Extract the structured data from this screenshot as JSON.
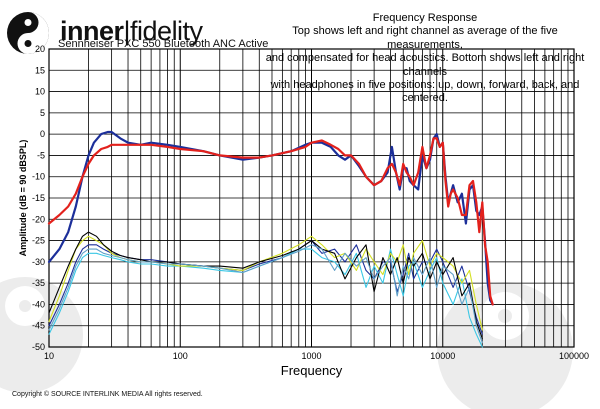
{
  "logo": {
    "brand": "inner|fidelity",
    "brand_bold": "inner",
    "brand_sep": "|",
    "brand_light": "fidelity"
  },
  "subtitle": "Sennheiser PXC 550 Bluetooth ANC Active",
  "copyright": "Copyright © SOURCE INTERLINK MEDIA All rights reserved.",
  "colors": {
    "red": "#e3211c",
    "blue": "#1c2f9a",
    "grid": "#000000",
    "watermark": "#ececec"
  },
  "chart_data": {
    "type": "line",
    "title": "Frequency Response",
    "subtitle": "Top shows left and right channel as average of the five measurements, and compensated for head acoustics. Bottom shows left and right channels with headphones in five positions: up, down, forward, back, and centered.",
    "subtitle_lines": [
      "Top shows left and right channel as average of the five measurements,",
      "and compensated for head acoustics. Bottom shows left and right channels",
      "with headphones in five positions: up, down, forward, back, and centered."
    ],
    "xlabel": "Frequency",
    "ylabel": "Amplitude (dB = 90 dBSPL)",
    "x_scale": "log",
    "xlim": [
      10,
      100000
    ],
    "ylim": [
      -50,
      20
    ],
    "x_ticks": [
      10,
      100,
      1000,
      10000,
      100000
    ],
    "x_tick_labels": [
      "10",
      "100",
      "1000",
      "10000",
      "100000"
    ],
    "y_ticks": [
      20,
      15,
      10,
      5,
      0,
      -5,
      -10,
      -15,
      -20,
      -25,
      -30,
      -35,
      -40,
      -45,
      -50
    ],
    "y_tick_labels": [
      "20",
      "15",
      "10",
      "5",
      "0",
      "-5",
      "-10",
      "-15",
      "-20",
      "-25",
      "-30",
      "-35",
      "-40",
      "-45",
      "-50"
    ],
    "grid": true,
    "series": [
      {
        "color": "#1c2f9a",
        "width": 2.2,
        "x": [
          10,
          12,
          14,
          16,
          18,
          20,
          22,
          25,
          28,
          30,
          35,
          40,
          50,
          60,
          80,
          100,
          150,
          200,
          300,
          400,
          500,
          700,
          900,
          1000,
          1200,
          1400,
          1600,
          1800,
          2000,
          2300,
          2600,
          3000,
          3400,
          3800,
          4100,
          4400,
          4700,
          5000,
          5300,
          5600,
          6000,
          6500,
          7000,
          7500,
          8000,
          8500,
          9000,
          9500,
          10000,
          10500,
          11000,
          11500,
          12000,
          13000,
          14000,
          15000,
          16000,
          17000,
          18000,
          19000,
          20000,
          21000,
          22000,
          23000,
          24000
        ],
        "y": [
          -30,
          -27,
          -23,
          -17,
          -10,
          -5,
          -2,
          0,
          0.5,
          0.5,
          -1,
          -2,
          -2.5,
          -2,
          -2.5,
          -3,
          -4,
          -5,
          -6,
          -5.5,
          -5,
          -4,
          -2.5,
          -2,
          -2,
          -3,
          -5,
          -6,
          -5,
          -7.5,
          -10,
          -12,
          -11,
          -9,
          -3,
          -9,
          -13,
          -8,
          -8,
          -11,
          -12,
          -13,
          -5,
          -8,
          -6,
          -1,
          0,
          -3,
          -2,
          -10,
          -16,
          -14,
          -12,
          -16,
          -14,
          -21,
          -13,
          -12,
          -18,
          -19,
          -17,
          -25,
          -35,
          -39,
          -40
        ]
      },
      {
        "color": "#e3211c",
        "width": 2.2,
        "x": [
          10,
          12,
          14,
          16,
          18,
          20,
          22,
          25,
          28,
          30,
          35,
          40,
          50,
          60,
          80,
          100,
          150,
          200,
          300,
          400,
          500,
          700,
          900,
          1000,
          1200,
          1400,
          1600,
          1800,
          2000,
          2300,
          2600,
          3000,
          3400,
          3800,
          4100,
          4400,
          4700,
          5000,
          5300,
          5600,
          6000,
          6500,
          7000,
          7500,
          8000,
          8500,
          9000,
          9500,
          10000,
          10500,
          11000,
          11500,
          12000,
          13000,
          14000,
          15000,
          16000,
          17000,
          18000,
          19000,
          20000,
          21000,
          22000,
          23000,
          24000
        ],
        "y": [
          -21,
          -19,
          -17,
          -14,
          -10,
          -7,
          -5,
          -3.5,
          -3,
          -2.5,
          -2.5,
          -2.5,
          -2.5,
          -2.5,
          -3,
          -3.5,
          -4,
          -5,
          -5.5,
          -5.5,
          -5,
          -4,
          -3,
          -2,
          -1.5,
          -2.5,
          -3.5,
          -5,
          -5,
          -7,
          -10,
          -12,
          -11,
          -8,
          -7,
          -9,
          -12,
          -7,
          -9,
          -10,
          -12,
          -9,
          -3,
          -8,
          -5,
          -1,
          -1,
          -3,
          -2,
          -11,
          -17,
          -14,
          -13,
          -15,
          -19,
          -19,
          -12,
          -11,
          -16,
          -23,
          -16,
          -26,
          -30,
          -38,
          -40
        ]
      },
      {
        "color": "#1c2f9a",
        "width": 1.1,
        "x": [
          10,
          12,
          14,
          16,
          18,
          20,
          23,
          26,
          30,
          35,
          40,
          50,
          60,
          80,
          100,
          150,
          200,
          300,
          400,
          600,
          800,
          1000,
          1200,
          1500,
          1800,
          2200,
          2600,
          3000,
          3500,
          4000,
          4500,
          5000,
          5500,
          6000,
          7000,
          8000,
          9000,
          10000,
          12000,
          14000,
          16000,
          18000,
          20000
        ],
        "y": [
          -45,
          -40,
          -35,
          -30,
          -27,
          -26,
          -26,
          -27,
          -28,
          -28.5,
          -29,
          -29.5,
          -29.5,
          -30,
          -30.5,
          -31,
          -31.5,
          -32,
          -30.5,
          -29,
          -27,
          -25,
          -28,
          -27,
          -30,
          -26,
          -32,
          -34,
          -30,
          -30,
          -37,
          -33,
          -28,
          -34,
          -30,
          -30,
          -27,
          -30,
          -36,
          -31,
          -37,
          -43,
          -47
        ]
      },
      {
        "color": "#39c7e5",
        "width": 1.1,
        "x": [
          10,
          12,
          14,
          16,
          18,
          20,
          23,
          26,
          30,
          35,
          40,
          50,
          60,
          80,
          100,
          150,
          200,
          300,
          400,
          600,
          800,
          1000,
          1200,
          1500,
          1800,
          2200,
          2600,
          3000,
          3500,
          4000,
          4500,
          5000,
          5500,
          6000,
          7000,
          8000,
          9000,
          10000,
          12000,
          14000,
          16000,
          18000,
          20000
        ],
        "y": [
          -47,
          -42,
          -37,
          -32,
          -29,
          -28,
          -28,
          -28.5,
          -29,
          -29.5,
          -30,
          -30.5,
          -30.5,
          -31,
          -31,
          -31.5,
          -32,
          -32.5,
          -31,
          -29,
          -27,
          -27,
          -29,
          -30,
          -33,
          -28,
          -36,
          -31,
          -35,
          -27,
          -33,
          -38,
          -31,
          -30,
          -36,
          -32,
          -29,
          -35,
          -40,
          -34,
          -43,
          -47,
          -50
        ]
      },
      {
        "color": "#d4e023",
        "width": 1.1,
        "x": [
          10,
          12,
          14,
          16,
          18,
          20,
          23,
          26,
          30,
          35,
          40,
          50,
          60,
          80,
          100,
          150,
          200,
          300,
          400,
          600,
          800,
          1000,
          1200,
          1500,
          1800,
          2200,
          2600,
          3000,
          3500,
          4000,
          4500,
          5000,
          5500,
          6000,
          7000,
          8000,
          9000,
          10000,
          12000,
          14000,
          16000,
          18000,
          20000
        ],
        "y": [
          -44,
          -38,
          -32,
          -27,
          -25,
          -24,
          -25,
          -26,
          -28,
          -29,
          -29.5,
          -30,
          -30,
          -30.5,
          -31,
          -31,
          -31.5,
          -32,
          -30,
          -28,
          -26,
          -24,
          -26,
          -29,
          -28,
          -32,
          -27,
          -30,
          -33,
          -28,
          -30,
          -26,
          -33,
          -28,
          -25,
          -31,
          -28,
          -29,
          -31,
          -35,
          -32,
          -40,
          -46
        ]
      },
      {
        "color": "#000000",
        "width": 1.1,
        "x": [
          10,
          12,
          14,
          16,
          18,
          20,
          23,
          26,
          30,
          35,
          40,
          50,
          60,
          80,
          100,
          150,
          200,
          300,
          400,
          600,
          800,
          1000,
          1200,
          1500,
          1800,
          2200,
          2600,
          3000,
          3500,
          4000,
          4500,
          5000,
          5500,
          6000,
          7000,
          8000,
          9000,
          10000,
          12000,
          14000,
          16000,
          18000,
          20000
        ],
        "y": [
          -42,
          -36,
          -31,
          -27,
          -24,
          -23,
          -24,
          -26,
          -27.5,
          -28.5,
          -29,
          -29.5,
          -30,
          -30,
          -30.5,
          -31,
          -31,
          -31.5,
          -30,
          -28.5,
          -27,
          -25,
          -27,
          -28,
          -34,
          -29,
          -26,
          -37,
          -29,
          -33,
          -29,
          -35,
          -29,
          -31,
          -28,
          -34,
          -30,
          -33,
          -29,
          -38,
          -35,
          -44,
          -48
        ]
      },
      {
        "color": "#5fa0c8",
        "width": 1.1,
        "x": [
          10,
          12,
          14,
          16,
          18,
          20,
          23,
          26,
          30,
          35,
          40,
          50,
          60,
          80,
          100,
          150,
          200,
          300,
          400,
          600,
          800,
          1000,
          1200,
          1500,
          1800,
          2200,
          2600,
          3000,
          3500,
          4000,
          4500,
          5000,
          5500,
          6000,
          7000,
          8000,
          9000,
          10000,
          12000,
          14000,
          16000,
          18000,
          20000
        ],
        "y": [
          -46,
          -41,
          -36,
          -31,
          -28,
          -27,
          -27,
          -28,
          -28.5,
          -29,
          -29.5,
          -30,
          -30,
          -30.5,
          -30.5,
          -31,
          -31.5,
          -32.5,
          -31,
          -29,
          -27.5,
          -26,
          -27,
          -32,
          -28,
          -31,
          -29,
          -34,
          -31,
          -29,
          -38,
          -31,
          -34,
          -29,
          -33,
          -29,
          -36,
          -31,
          -33,
          -40,
          -36,
          -45,
          -49
        ]
      }
    ]
  }
}
